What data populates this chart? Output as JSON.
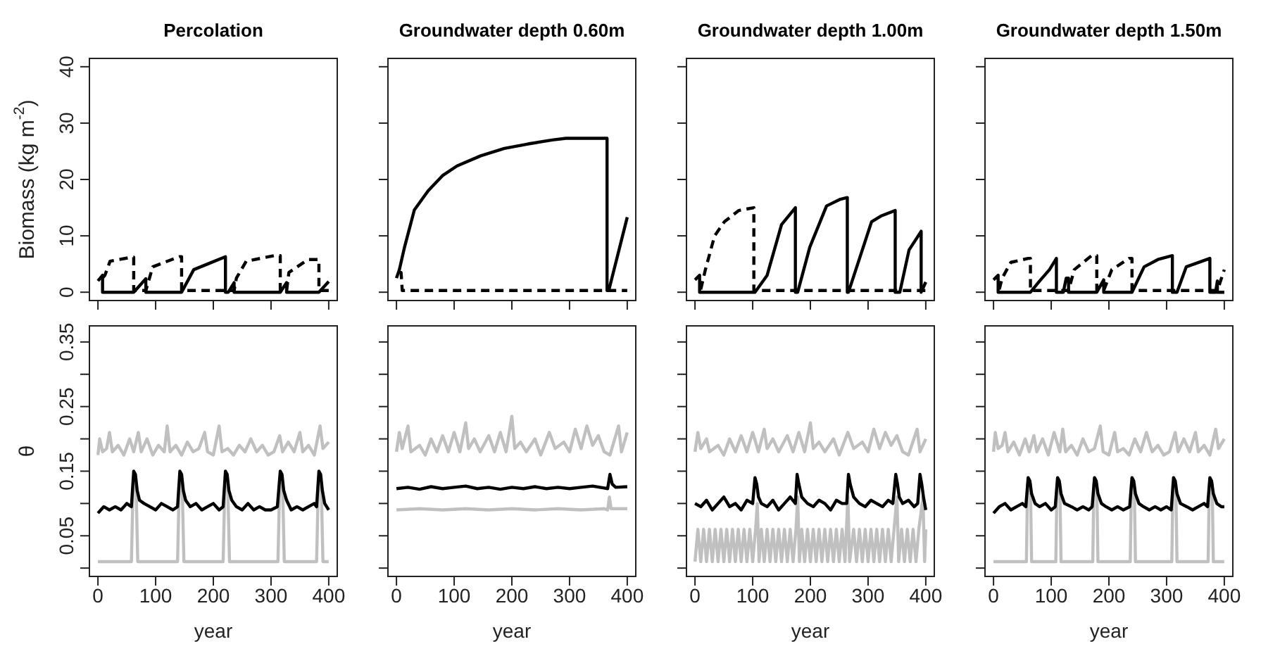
{
  "chart_data": [
    {
      "type": "line",
      "title": "Percolation",
      "ylabel": "Biomass (kg m$^{-2}$)",
      "xlim": [
        -16,
        416
      ],
      "ylim": [
        -1.6,
        41.6
      ],
      "xticks": [
        0,
        100,
        200,
        300,
        400
      ],
      "yticks": [
        0,
        10,
        20,
        30,
        40
      ],
      "tick_labels": "y",
      "series": [
        {
          "color": "#000000",
          "line_style": "solid",
          "x": [
            0,
            8,
            8,
            62,
            83,
            83,
            145,
            166,
            190,
            221,
            221,
            226,
            236,
            236,
            316,
            327,
            327,
            383,
            400
          ],
          "values": [
            2,
            3,
            0,
            0,
            2.4,
            0,
            0,
            4,
            5,
            6.3,
            0,
            0,
            1.7,
            0,
            0,
            1.7,
            0,
            0,
            1.9
          ]
        },
        {
          "color": "#000000",
          "line_style": "dashed",
          "x": [
            8,
            12,
            21,
            58,
            62,
            62,
            83,
            95,
            141,
            145,
            145,
            236,
            240,
            257,
            306,
            316,
            316,
            327,
            331,
            364,
            383,
            383,
            400
          ],
          "values": [
            2.5,
            3,
            5.5,
            6.2,
            6.2,
            0.3,
            0.3,
            4.5,
            6.3,
            6.3,
            0.3,
            0.3,
            2.5,
            5.5,
            6.5,
            6.5,
            0.3,
            0.3,
            3.5,
            5.8,
            5.8,
            0.3,
            0.3
          ]
        }
      ]
    },
    {
      "type": "line",
      "title": "Groundwater depth 0.60m",
      "xlim": [
        -16,
        416
      ],
      "ylim": [
        -1.6,
        41.6
      ],
      "xticks": [
        0,
        100,
        200,
        300,
        400
      ],
      "yticks": [
        0,
        10,
        20,
        30,
        40
      ],
      "tick_labels": false,
      "series": [
        {
          "color": "#000000",
          "line_style": "solid",
          "x": [
            0,
            5,
            14,
            31,
            55,
            80,
            105,
            146,
            187,
            228,
            270,
            294,
            365,
            365,
            368,
            400
          ],
          "values": [
            2.5,
            4,
            8,
            14.6,
            18,
            20.7,
            22.4,
            24.2,
            25.5,
            26.3,
            27,
            27.3,
            27.3,
            0.3,
            0.3,
            13.3
          ]
        },
        {
          "color": "#000000",
          "line_style": "dashed",
          "x": [
            5,
            8,
            10,
            400
          ],
          "values": [
            3.5,
            3.5,
            0.3,
            0.3
          ]
        }
      ]
    },
    {
      "type": "line",
      "title": "Groundwater depth 1.00m",
      "xlim": [
        -16,
        416
      ],
      "ylim": [
        -1.6,
        41.6
      ],
      "xticks": [
        0,
        100,
        200,
        300,
        400
      ],
      "yticks": [
        0,
        10,
        20,
        30,
        40
      ],
      "tick_labels": false,
      "series": [
        {
          "color": "#000000",
          "line_style": "solid",
          "x": [
            0,
            8,
            8,
            104,
            125,
            150,
            174,
            174,
            178,
            199,
            228,
            252,
            264,
            264,
            266,
            306,
            322,
            347,
            347,
            355,
            371,
            392,
            392,
            400
          ],
          "values": [
            2.2,
            3,
            0,
            0,
            3,
            12,
            15,
            0,
            0,
            8,
            15.3,
            16.5,
            16.8,
            0,
            0,
            12.5,
            13.5,
            14.5,
            0,
            0,
            7.5,
            10.8,
            0,
            1.8
          ]
        },
        {
          "color": "#000000",
          "line_style": "dashed",
          "x": [
            10,
            18,
            34,
            51,
            76,
            102,
            102,
            400
          ],
          "values": [
            0.5,
            4,
            10,
            12.5,
            14.5,
            15,
            0.3,
            0.3
          ]
        }
      ]
    },
    {
      "type": "line",
      "title": "Groundwater depth 1.50m",
      "xlim": [
        -16,
        416
      ],
      "ylim": [
        -1.6,
        41.6
      ],
      "xticks": [
        0,
        100,
        200,
        300,
        400
      ],
      "yticks": [
        0,
        10,
        20,
        30,
        40
      ],
      "tick_labels": false,
      "series": [
        {
          "color": "#000000",
          "line_style": "solid",
          "x": [
            0,
            8,
            8,
            64,
            80,
            97,
            109,
            109,
            121,
            126,
            130,
            130,
            179,
            191,
            191,
            240,
            261,
            285,
            310,
            310,
            318,
            334,
            375,
            375,
            385,
            388,
            388,
            400
          ],
          "values": [
            2.2,
            3,
            0,
            0,
            2,
            4,
            6,
            0,
            0,
            2.5,
            2.5,
            0,
            0,
            2.2,
            0,
            0,
            4.5,
            5.8,
            6.5,
            0,
            0,
            4.5,
            6,
            0,
            0,
            2,
            0,
            0
          ]
        },
        {
          "color": "#000000",
          "line_style": "dashed",
          "x": [
            10,
            15,
            30,
            60,
            64,
            64,
            130,
            140,
            170,
            179,
            179,
            191,
            205,
            235,
            240,
            240,
            388,
            400
          ],
          "values": [
            0.5,
            2.5,
            5.3,
            6,
            6,
            0.3,
            0.3,
            4,
            6.5,
            6.5,
            0.3,
            0.3,
            4,
            6,
            6,
            0.3,
            0.3,
            4
          ]
        }
      ]
    },
    {
      "type": "line",
      "xlabel": "year",
      "ylabel": "θ",
      "xlim": [
        -16,
        416
      ],
      "ylim": [
        -0.014,
        0.376
      ],
      "xticks": [
        0,
        100,
        200,
        300,
        400
      ],
      "yticks": [
        {
          "value": 0,
          "label": null
        },
        0.05,
        {
          "value": 0.1,
          "label": null
        },
        0.15,
        {
          "value": 0.2,
          "label": null
        },
        0.25,
        {
          "value": 0.3,
          "label": null
        },
        0.35
      ],
      "series": [
        {
          "color": "#c0c0c0",
          "x": [
            0,
            3,
            8,
            15,
            20,
            25,
            35,
            45,
            55,
            62,
            70,
            75,
            85,
            95,
            105,
            115,
            120,
            125,
            135,
            145,
            155,
            165,
            175,
            185,
            190,
            200,
            210,
            215,
            225,
            235,
            245,
            255,
            265,
            275,
            285,
            295,
            305,
            315,
            320,
            330,
            340,
            350,
            355,
            365,
            375,
            385,
            390,
            400
          ],
          "values": [
            0.175,
            0.2,
            0.18,
            0.185,
            0.21,
            0.18,
            0.19,
            0.175,
            0.2,
            0.18,
            0.21,
            0.18,
            0.2,
            0.175,
            0.19,
            0.18,
            0.22,
            0.18,
            0.19,
            0.175,
            0.195,
            0.18,
            0.185,
            0.21,
            0.18,
            0.175,
            0.22,
            0.18,
            0.185,
            0.175,
            0.19,
            0.18,
            0.2,
            0.18,
            0.19,
            0.175,
            0.18,
            0.205,
            0.18,
            0.195,
            0.18,
            0.21,
            0.18,
            0.19,
            0.175,
            0.22,
            0.185,
            0.195
          ]
        },
        {
          "color": "#c0c0c0",
          "x": [
            0,
            58,
            61,
            66,
            69,
            138,
            141,
            146,
            149,
            217,
            220,
            225,
            228,
            312,
            315,
            320,
            323,
            379,
            382,
            387,
            390,
            400
          ],
          "values": [
            0.01,
            0.01,
            0.13,
            0.13,
            0.01,
            0.01,
            0.13,
            0.13,
            0.01,
            0.01,
            0.13,
            0.13,
            0.01,
            0.01,
            0.13,
            0.13,
            0.01,
            0.01,
            0.13,
            0.13,
            0.01,
            0.01
          ]
        },
        {
          "color": "#000000",
          "x": [
            0,
            5,
            10,
            20,
            30,
            40,
            50,
            58,
            62,
            65,
            68,
            72,
            80,
            90,
            100,
            110,
            120,
            130,
            138,
            142,
            145,
            148,
            152,
            160,
            170,
            180,
            190,
            200,
            210,
            217,
            221,
            224,
            227,
            232,
            240,
            250,
            260,
            270,
            280,
            290,
            300,
            311,
            316,
            319,
            322,
            327,
            335,
            345,
            355,
            365,
            375,
            379,
            383,
            386,
            389,
            393,
            400
          ],
          "values": [
            0.085,
            0.09,
            0.095,
            0.09,
            0.095,
            0.09,
            0.1,
            0.095,
            0.15,
            0.145,
            0.12,
            0.105,
            0.1,
            0.095,
            0.09,
            0.1,
            0.095,
            0.09,
            0.095,
            0.15,
            0.145,
            0.12,
            0.105,
            0.095,
            0.1,
            0.09,
            0.095,
            0.1,
            0.09,
            0.095,
            0.15,
            0.145,
            0.12,
            0.105,
            0.095,
            0.09,
            0.1,
            0.09,
            0.095,
            0.09,
            0.09,
            0.095,
            0.15,
            0.145,
            0.12,
            0.105,
            0.09,
            0.095,
            0.09,
            0.095,
            0.1,
            0.095,
            0.15,
            0.145,
            0.12,
            0.1,
            0.09
          ]
        }
      ]
    },
    {
      "type": "line",
      "xlabel": "year",
      "xlim": [
        -16,
        416
      ],
      "ylim": [
        -0.014,
        0.376
      ],
      "xticks": [
        0,
        100,
        200,
        300,
        400
      ],
      "yticks": [
        {
          "value": 0,
          "label": null
        },
        0.05,
        {
          "value": 0.1,
          "label": null
        },
        0.15,
        {
          "value": 0.2,
          "label": null
        },
        0.25,
        {
          "value": 0.3,
          "label": null
        },
        0.35
      ],
      "tick_labels": "x",
      "series": [
        {
          "color": "#c0c0c0",
          "x": [
            0,
            5,
            10,
            20,
            25,
            40,
            50,
            60,
            70,
            80,
            90,
            100,
            110,
            120,
            125,
            135,
            145,
            160,
            170,
            180,
            190,
            200,
            205,
            215,
            225,
            240,
            250,
            265,
            275,
            290,
            300,
            310,
            320,
            330,
            340,
            350,
            360,
            370,
            385,
            390,
            400
          ],
          "values": [
            0.18,
            0.21,
            0.185,
            0.22,
            0.18,
            0.19,
            0.175,
            0.2,
            0.18,
            0.205,
            0.18,
            0.21,
            0.18,
            0.225,
            0.185,
            0.2,
            0.18,
            0.205,
            0.18,
            0.21,
            0.18,
            0.235,
            0.185,
            0.195,
            0.18,
            0.2,
            0.175,
            0.21,
            0.185,
            0.195,
            0.18,
            0.215,
            0.185,
            0.22,
            0.19,
            0.205,
            0.18,
            0.175,
            0.22,
            0.18,
            0.21
          ]
        },
        {
          "color": "#c0c0c0",
          "x": [
            0,
            40,
            80,
            120,
            160,
            200,
            240,
            280,
            320,
            360,
            366,
            369,
            372,
            400
          ],
          "values": [
            0.09,
            0.092,
            0.09,
            0.092,
            0.09,
            0.092,
            0.09,
            0.092,
            0.09,
            0.092,
            0.09,
            0.11,
            0.092,
            0.092
          ]
        },
        {
          "color": "#000000",
          "x": [
            0,
            20,
            40,
            60,
            80,
            100,
            120,
            140,
            160,
            180,
            200,
            220,
            240,
            260,
            280,
            300,
            320,
            340,
            360,
            366,
            370,
            374,
            380,
            400
          ],
          "values": [
            0.123,
            0.125,
            0.122,
            0.126,
            0.123,
            0.125,
            0.127,
            0.123,
            0.125,
            0.122,
            0.125,
            0.123,
            0.126,
            0.123,
            0.125,
            0.123,
            0.125,
            0.127,
            0.124,
            0.123,
            0.145,
            0.13,
            0.125,
            0.126
          ]
        }
      ]
    },
    {
      "type": "line",
      "xlabel": "year",
      "xlim": [
        -16,
        416
      ],
      "ylim": [
        -0.014,
        0.376
      ],
      "xticks": [
        0,
        100,
        200,
        300,
        400
      ],
      "yticks": [
        {
          "value": 0,
          "label": null
        },
        0.05,
        {
          "value": 0.1,
          "label": null
        },
        0.15,
        {
          "value": 0.2,
          "label": null
        },
        0.25,
        {
          "value": 0.3,
          "label": null
        },
        0.35
      ],
      "tick_labels": "x",
      "series": [
        {
          "color": "#c0c0c0",
          "x": [
            0,
            5,
            10,
            20,
            25,
            40,
            50,
            60,
            70,
            80,
            90,
            100,
            110,
            120,
            125,
            135,
            145,
            160,
            170,
            180,
            190,
            200,
            205,
            215,
            225,
            240,
            250,
            265,
            275,
            290,
            300,
            310,
            320,
            330,
            340,
            350,
            360,
            370,
            385,
            390,
            400
          ],
          "values": [
            0.18,
            0.21,
            0.185,
            0.2,
            0.18,
            0.19,
            0.175,
            0.2,
            0.18,
            0.205,
            0.18,
            0.21,
            0.18,
            0.215,
            0.185,
            0.2,
            0.18,
            0.205,
            0.18,
            0.21,
            0.18,
            0.225,
            0.185,
            0.195,
            0.18,
            0.2,
            0.175,
            0.21,
            0.185,
            0.195,
            0.18,
            0.215,
            0.185,
            0.21,
            0.19,
            0.205,
            0.18,
            0.175,
            0.215,
            0.18,
            0.2
          ]
        },
        {
          "color": "#c0c0c0",
          "x": [
            0,
            5,
            10,
            15,
            20,
            25,
            30,
            35,
            40,
            45,
            50,
            55,
            60,
            65,
            70,
            75,
            80,
            85,
            90,
            95,
            100,
            105,
            108,
            111,
            115,
            120,
            125,
            130,
            135,
            140,
            145,
            150,
            155,
            160,
            165,
            170,
            175,
            178,
            181,
            185,
            190,
            195,
            200,
            205,
            210,
            215,
            220,
            225,
            230,
            235,
            240,
            245,
            250,
            255,
            260,
            265,
            268,
            275,
            280,
            285,
            290,
            295,
            300,
            305,
            310,
            315,
            320,
            325,
            330,
            335,
            340,
            345,
            350,
            353,
            358,
            363,
            368,
            373,
            378,
            383,
            388,
            395,
            398,
            400
          ],
          "values": [
            0.01,
            0.06,
            0.01,
            0.06,
            0.01,
            0.06,
            0.01,
            0.06,
            0.01,
            0.06,
            0.01,
            0.06,
            0.01,
            0.06,
            0.01,
            0.06,
            0.01,
            0.06,
            0.01,
            0.06,
            0.01,
            0.06,
            0.1,
            0.01,
            0.06,
            0.01,
            0.06,
            0.01,
            0.06,
            0.01,
            0.06,
            0.01,
            0.06,
            0.01,
            0.06,
            0.01,
            0.06,
            0.11,
            0.01,
            0.06,
            0.01,
            0.06,
            0.01,
            0.06,
            0.01,
            0.06,
            0.01,
            0.06,
            0.01,
            0.06,
            0.01,
            0.06,
            0.01,
            0.06,
            0.01,
            0.11,
            0.01,
            0.06,
            0.01,
            0.06,
            0.01,
            0.06,
            0.01,
            0.06,
            0.01,
            0.06,
            0.01,
            0.06,
            0.01,
            0.06,
            0.01,
            0.06,
            0.11,
            0.01,
            0.06,
            0.01,
            0.06,
            0.01,
            0.06,
            0.01,
            0.06,
            0.11,
            0.01,
            0.06
          ]
        },
        {
          "color": "#000000",
          "x": [
            0,
            10,
            20,
            30,
            40,
            50,
            60,
            70,
            80,
            90,
            100,
            104,
            107,
            110,
            115,
            125,
            135,
            145,
            155,
            165,
            174,
            177,
            180,
            185,
            195,
            205,
            215,
            225,
            235,
            245,
            255,
            263,
            266,
            269,
            275,
            285,
            295,
            305,
            315,
            325,
            335,
            343,
            348,
            351,
            354,
            360,
            370,
            380,
            386,
            390,
            393,
            396,
            400
          ],
          "values": [
            0.1,
            0.095,
            0.105,
            0.09,
            0.1,
            0.11,
            0.095,
            0.1,
            0.09,
            0.105,
            0.1,
            0.14,
            0.13,
            0.11,
            0.1,
            0.095,
            0.105,
            0.09,
            0.1,
            0.11,
            0.1,
            0.145,
            0.13,
            0.11,
            0.1,
            0.095,
            0.105,
            0.1,
            0.09,
            0.105,
            0.1,
            0.1,
            0.145,
            0.13,
            0.11,
            0.1,
            0.095,
            0.105,
            0.1,
            0.095,
            0.105,
            0.1,
            0.145,
            0.13,
            0.11,
            0.1,
            0.105,
            0.095,
            0.1,
            0.145,
            0.13,
            0.11,
            0.09
          ]
        }
      ]
    },
    {
      "type": "line",
      "xlabel": "year",
      "xlim": [
        -16,
        416
      ],
      "ylim": [
        -0.014,
        0.376
      ],
      "xticks": [
        0,
        100,
        200,
        300,
        400
      ],
      "yticks": [
        {
          "value": 0,
          "label": null
        },
        0.05,
        {
          "value": 0.1,
          "label": null
        },
        0.15,
        {
          "value": 0.2,
          "label": null
        },
        0.25,
        {
          "value": 0.3,
          "label": null
        },
        0.35
      ],
      "tick_labels": "x",
      "series": [
        {
          "color": "#c0c0c0",
          "x": [
            0,
            3,
            8,
            15,
            20,
            25,
            35,
            45,
            55,
            62,
            70,
            75,
            85,
            95,
            105,
            115,
            120,
            125,
            135,
            145,
            155,
            165,
            175,
            185,
            190,
            200,
            210,
            215,
            225,
            235,
            245,
            255,
            265,
            275,
            285,
            295,
            305,
            315,
            320,
            330,
            340,
            350,
            355,
            365,
            375,
            385,
            390,
            400
          ],
          "values": [
            0.18,
            0.21,
            0.185,
            0.19,
            0.21,
            0.18,
            0.195,
            0.175,
            0.2,
            0.18,
            0.205,
            0.18,
            0.2,
            0.175,
            0.21,
            0.18,
            0.215,
            0.18,
            0.19,
            0.175,
            0.2,
            0.18,
            0.185,
            0.22,
            0.18,
            0.175,
            0.21,
            0.18,
            0.185,
            0.175,
            0.2,
            0.18,
            0.21,
            0.18,
            0.19,
            0.175,
            0.18,
            0.21,
            0.18,
            0.2,
            0.18,
            0.21,
            0.18,
            0.19,
            0.175,
            0.215,
            0.185,
            0.2
          ]
        },
        {
          "color": "#c0c0c0",
          "x": [
            0,
            57,
            59,
            64,
            66,
            108,
            110,
            115,
            117,
            172,
            174,
            179,
            181,
            237,
            239,
            244,
            246,
            309,
            311,
            316,
            318,
            372,
            374,
            379,
            381,
            400
          ],
          "values": [
            0.01,
            0.01,
            0.13,
            0.13,
            0.01,
            0.01,
            0.13,
            0.13,
            0.01,
            0.01,
            0.13,
            0.13,
            0.01,
            0.01,
            0.13,
            0.13,
            0.01,
            0.01,
            0.13,
            0.13,
            0.01,
            0.01,
            0.13,
            0.13,
            0.01,
            0.01
          ]
        },
        {
          "color": "#000000",
          "x": [
            0,
            10,
            20,
            30,
            40,
            50,
            56,
            60,
            63,
            66,
            72,
            80,
            90,
            100,
            107,
            111,
            114,
            117,
            123,
            135,
            145,
            155,
            165,
            171,
            175,
            178,
            181,
            187,
            195,
            205,
            215,
            225,
            236,
            240,
            243,
            246,
            252,
            260,
            270,
            280,
            290,
            300,
            308,
            312,
            315,
            318,
            324,
            335,
            345,
            355,
            365,
            371,
            375,
            378,
            381,
            387,
            395,
            400
          ],
          "values": [
            0.085,
            0.095,
            0.1,
            0.09,
            0.095,
            0.1,
            0.095,
            0.14,
            0.135,
            0.115,
            0.1,
            0.095,
            0.1,
            0.09,
            0.095,
            0.14,
            0.135,
            0.115,
            0.1,
            0.095,
            0.09,
            0.095,
            0.09,
            0.095,
            0.14,
            0.135,
            0.115,
            0.1,
            0.095,
            0.09,
            0.095,
            0.09,
            0.095,
            0.14,
            0.135,
            0.115,
            0.1,
            0.095,
            0.09,
            0.095,
            0.09,
            0.095,
            0.09,
            0.14,
            0.135,
            0.115,
            0.1,
            0.095,
            0.09,
            0.095,
            0.1,
            0.095,
            0.14,
            0.135,
            0.115,
            0.1,
            0.095,
            0.095
          ]
        }
      ]
    }
  ]
}
